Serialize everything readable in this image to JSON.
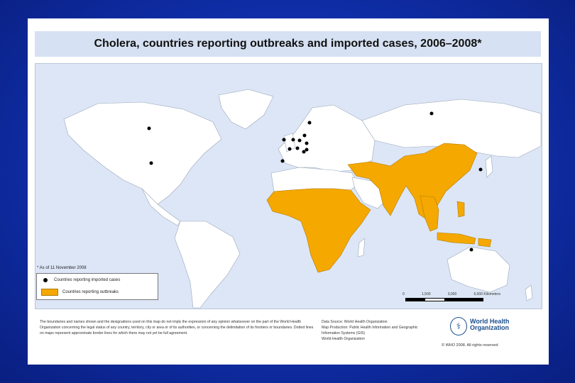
{
  "title": "Cholera, countries reporting outbreaks and imported cases, 2006–2008*",
  "map": {
    "as_of_note": "* As of 11 November 2008",
    "legend": {
      "imported_label": "Countries reporting imported cases",
      "outbreak_label": "Countries reporting outbreaks"
    },
    "colors": {
      "ocean": "#dce6f6",
      "land": "#ffffff",
      "outbreak": "#f5a800",
      "imported_marker": "#000000",
      "border": "#9aa6b8"
    },
    "scale": {
      "ticks": [
        "0",
        "1,500",
        "3,000",
        "6,000 Kilometers"
      ]
    },
    "outbreak_regions": [
      "Sub-Saharan Africa",
      "Southern Africa",
      "Sahel",
      "Middle East",
      "Iraq",
      "Iran",
      "Afghanistan",
      "Pakistan",
      "India",
      "China",
      "South-East Asia",
      "Philippines",
      "Indonesia",
      "Papua New Guinea"
    ],
    "imported_case_regions": [
      "Canada",
      "United States",
      "Norway",
      "Sweden",
      "United Kingdom",
      "Ireland",
      "Belgium",
      "Netherlands",
      "Germany",
      "France",
      "Switzerland",
      "Italy",
      "Spain",
      "Russia",
      "Japan",
      "Australia"
    ]
  },
  "footer": {
    "disclaimer": "The boundaries and names shown and the designations used on this map do not imply the expression of any opinion whatsoever on the part of the World Health Organization concerning the legal status of any country, territory, city or area or of its authorities, or concerning the delimitation of its frontiers or boundaries. Dotted lines on maps represent approximate border lines for which there may not yet be full agreement.",
    "source": "Data Source: World Health Organization\nMap Production: Public Health Information and Geographic Information Systems (GIS)\nWorld Health Organization",
    "who_name": "World Health\nOrganization",
    "copyright": "© WHO 2008. All rights reserved"
  }
}
